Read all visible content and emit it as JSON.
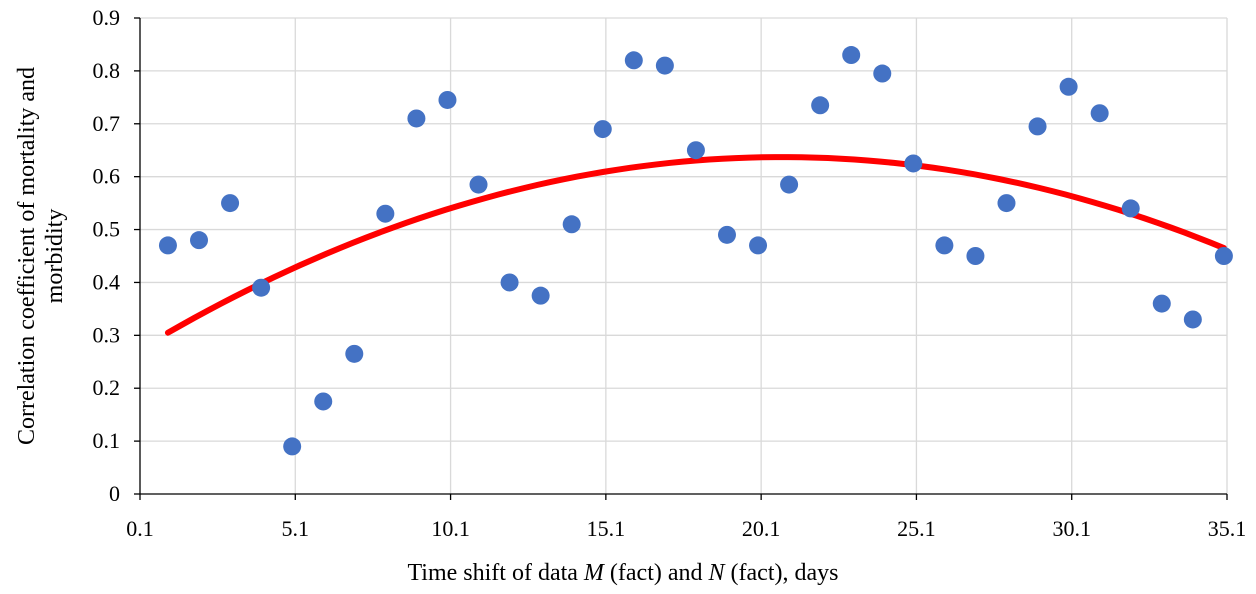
{
  "chart_data": {
    "type": "scatter",
    "xlabel_parts": [
      "Time shift of data ",
      "M",
      " (fact) and ",
      "N",
      " (fact), days"
    ],
    "ylabel_lines": [
      "Correlation coefficient of mortality and",
      "morbidity"
    ],
    "x_ticks": [
      "0.1",
      "5.1",
      "10.1",
      "15.1",
      "20.1",
      "25.1",
      "30.1",
      "35.1"
    ],
    "y_ticks": [
      "0",
      "0.1",
      "0.2",
      "0.3",
      "0.4",
      "0.5",
      "0.6",
      "0.7",
      "0.8",
      "0.9"
    ],
    "xlim": [
      0.1,
      35.1
    ],
    "ylim": [
      0,
      0.9
    ],
    "grid": true,
    "series": [
      {
        "marker_color": "#4472c4",
        "points": [
          [
            1,
            0.47
          ],
          [
            2,
            0.48
          ],
          [
            3,
            0.55
          ],
          [
            4,
            0.39
          ],
          [
            5,
            0.09
          ],
          [
            6,
            0.175
          ],
          [
            7,
            0.265
          ],
          [
            8,
            0.53
          ],
          [
            9,
            0.71
          ],
          [
            10,
            0.745
          ],
          [
            11,
            0.585
          ],
          [
            12,
            0.4
          ],
          [
            13,
            0.375
          ],
          [
            14,
            0.51
          ],
          [
            15,
            0.69
          ],
          [
            16,
            0.82
          ],
          [
            17,
            0.81
          ],
          [
            18,
            0.65
          ],
          [
            19,
            0.49
          ],
          [
            20,
            0.47
          ],
          [
            21,
            0.585
          ],
          [
            22,
            0.735
          ],
          [
            23,
            0.83
          ],
          [
            24,
            0.795
          ],
          [
            25,
            0.625
          ],
          [
            26,
            0.47
          ],
          [
            27,
            0.45
          ],
          [
            28,
            0.55
          ],
          [
            29,
            0.695
          ],
          [
            30,
            0.77
          ],
          [
            31,
            0.72
          ],
          [
            32,
            0.54
          ],
          [
            33,
            0.36
          ],
          [
            34,
            0.33
          ],
          [
            35,
            0.45
          ]
        ]
      }
    ],
    "trendline": {
      "type": "polynomial",
      "color": "#ff0000",
      "x_range": [
        1,
        35
      ],
      "points": [
        [
          1,
          0.305
        ],
        [
          20.5,
          0.637
        ],
        [
          35,
          0.465
        ]
      ]
    }
  }
}
